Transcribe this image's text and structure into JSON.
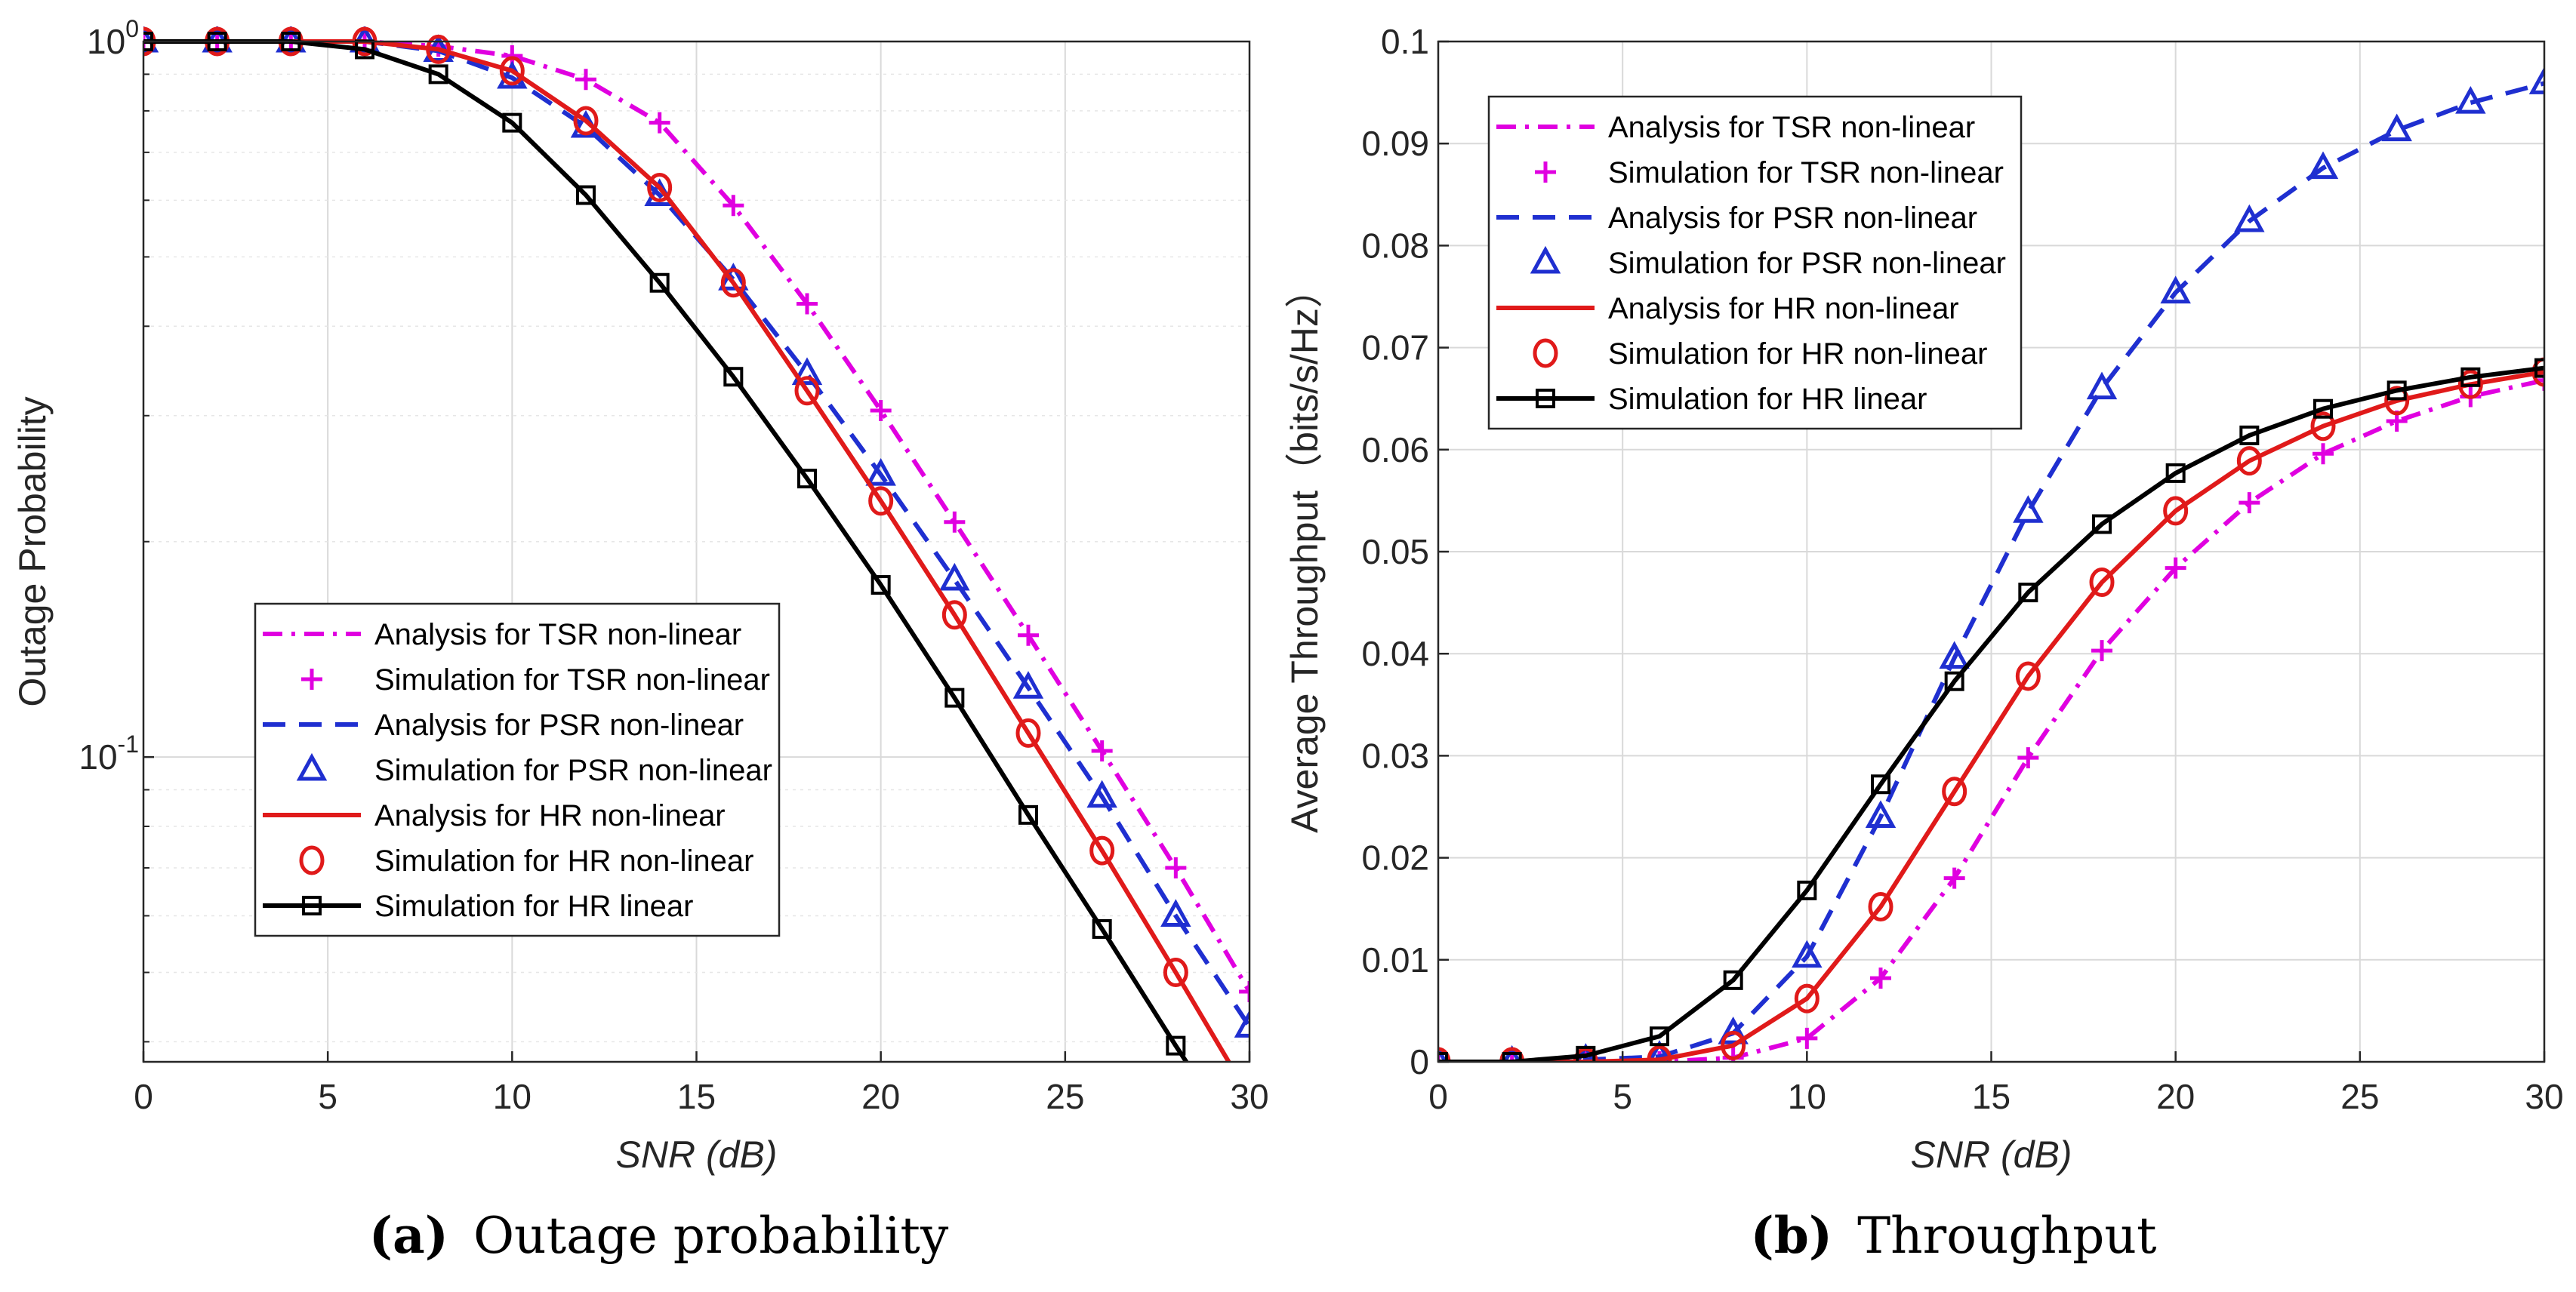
{
  "chart_data": [
    {
      "type": "line",
      "id": "a",
      "caption_tag": "(a)",
      "caption_text": "Outage probability",
      "xlabel": "SNR (dB)",
      "ylabel": "Outage Probability",
      "yscale": "log",
      "xlim": [
        0,
        30
      ],
      "ylim": [
        0.0375,
        1.0
      ],
      "xticks": [
        0,
        5,
        10,
        15,
        20,
        25,
        30
      ],
      "xtick_labels": [
        "0",
        "5",
        "10",
        "15",
        "20",
        "25",
        "30"
      ],
      "yticks": [
        {
          "value": 1.0,
          "base": "10",
          "exp": "0"
        },
        {
          "value": 0.1,
          "base": "10",
          "exp": "-1"
        }
      ],
      "grid": true,
      "legend_position": "lower-left",
      "x": [
        0,
        2,
        4,
        6,
        8,
        10,
        12,
        14,
        16,
        18,
        20,
        22,
        24,
        26,
        28,
        30
      ],
      "series": [
        {
          "name": "Analysis for TSR non-linear",
          "color": "#e000e0",
          "style": "dashdot",
          "marker": "none",
          "values": [
            1.0,
            1.0,
            1.0,
            1.0,
            0.985,
            0.955,
            0.885,
            0.77,
            0.59,
            0.43,
            0.305,
            0.213,
            0.148,
            0.102,
            0.07,
            0.047
          ]
        },
        {
          "name": "Simulation for TSR non-linear",
          "color": "#e000e0",
          "style": "none",
          "marker": "plus",
          "values": [
            1.0,
            1.0,
            1.0,
            1.0,
            0.985,
            0.955,
            0.885,
            0.77,
            0.59,
            0.43,
            0.305,
            0.213,
            0.148,
            0.102,
            0.07,
            0.047
          ]
        },
        {
          "name": "Analysis for PSR non-linear",
          "color": "#1f2fd0",
          "style": "dashed",
          "marker": "none",
          "values": [
            1.0,
            1.0,
            1.0,
            1.0,
            0.97,
            0.89,
            0.76,
            0.61,
            0.465,
            0.343,
            0.248,
            0.177,
            0.125,
            0.088,
            0.06,
            0.042
          ]
        },
        {
          "name": "Simulation for PSR non-linear",
          "color": "#1f2fd0",
          "style": "none",
          "marker": "triangle",
          "values": [
            1.0,
            1.0,
            1.0,
            1.0,
            0.97,
            0.89,
            0.76,
            0.61,
            0.465,
            0.343,
            0.248,
            0.177,
            0.125,
            0.088,
            0.06,
            0.042
          ]
        },
        {
          "name": "Analysis for HR non-linear",
          "color": "#e01a1a",
          "style": "solid",
          "marker": "none",
          "values": [
            1.0,
            1.0,
            1.0,
            1.0,
            0.975,
            0.91,
            0.775,
            0.625,
            0.46,
            0.325,
            0.228,
            0.158,
            0.108,
            0.074,
            0.05,
            0.0335
          ]
        },
        {
          "name": "Simulation for HR non-linear",
          "color": "#e01a1a",
          "style": "none",
          "marker": "circle",
          "values": [
            1.0,
            1.0,
            1.0,
            1.0,
            0.975,
            0.91,
            0.775,
            0.625,
            0.46,
            0.325,
            0.228,
            0.158,
            0.108,
            0.074,
            0.05,
            0.0335
          ]
        },
        {
          "name": "Simulation for HR linear",
          "color": "#000000",
          "style": "solid",
          "marker": "square",
          "values": [
            1.0,
            1.0,
            1.0,
            0.975,
            0.9,
            0.77,
            0.61,
            0.46,
            0.34,
            0.245,
            0.174,
            0.121,
            0.083,
            0.0575,
            0.0395,
            0.0275
          ]
        }
      ]
    },
    {
      "type": "line",
      "id": "b",
      "caption_tag": "(b)",
      "caption_text": "Throughput",
      "xlabel": "SNR (dB)",
      "ylabel": "Average Throughput（bits/s/Hz）",
      "yscale": "linear",
      "xlim": [
        0,
        30
      ],
      "ylim": [
        0,
        0.1
      ],
      "xticks": [
        0,
        5,
        10,
        15,
        20,
        25,
        30
      ],
      "xtick_labels": [
        "0",
        "5",
        "10",
        "15",
        "20",
        "25",
        "30"
      ],
      "yticks": [
        0,
        0.01,
        0.02,
        0.03,
        0.04,
        0.05,
        0.06,
        0.07,
        0.08,
        0.09,
        0.1
      ],
      "ytick_labels": [
        "0",
        "0.01",
        "0.02",
        "0.03",
        "0.04",
        "0.05",
        "0.06",
        "0.07",
        "0.08",
        "0.09",
        "0.1"
      ],
      "grid": true,
      "legend_position": "upper-left",
      "x": [
        0,
        2,
        4,
        6,
        8,
        10,
        12,
        14,
        16,
        18,
        20,
        22,
        24,
        26,
        28,
        30
      ],
      "series": [
        {
          "name": "Analysis for TSR non-linear",
          "color": "#e000e0",
          "style": "dashdot",
          "marker": "none",
          "values": [
            0.0,
            0.0,
            0.0,
            0.0,
            0.0004,
            0.0023,
            0.0082,
            0.018,
            0.0298,
            0.0403,
            0.0484,
            0.0548,
            0.0596,
            0.0628,
            0.0652,
            0.0668
          ]
        },
        {
          "name": "Simulation for TSR non-linear",
          "color": "#e000e0",
          "style": "none",
          "marker": "plus",
          "values": [
            0.0,
            0.0,
            0.0,
            0.0,
            0.0004,
            0.0023,
            0.0082,
            0.018,
            0.0298,
            0.0403,
            0.0484,
            0.0548,
            0.0596,
            0.0628,
            0.0652,
            0.0668
          ]
        },
        {
          "name": "Analysis for PSR non-linear",
          "color": "#1f2fd0",
          "style": "dashed",
          "marker": "none",
          "values": [
            0.0,
            0.0,
            0.0002,
            0.0005,
            0.0028,
            0.0103,
            0.024,
            0.0396,
            0.0539,
            0.066,
            0.0754,
            0.0824,
            0.0876,
            0.0913,
            0.094,
            0.0959
          ]
        },
        {
          "name": "Simulation for PSR non-linear",
          "color": "#1f2fd0",
          "style": "none",
          "marker": "triangle",
          "values": [
            0.0,
            0.0,
            0.0002,
            0.0005,
            0.0028,
            0.0103,
            0.024,
            0.0396,
            0.0539,
            0.066,
            0.0754,
            0.0824,
            0.0876,
            0.0913,
            0.094,
            0.0959
          ]
        },
        {
          "name": "Analysis for HR non-linear",
          "color": "#e01a1a",
          "style": "solid",
          "marker": "none",
          "values": [
            0.0,
            0.0,
            0.0,
            0.0002,
            0.0016,
            0.0062,
            0.0152,
            0.0265,
            0.0378,
            0.047,
            0.054,
            0.0589,
            0.0623,
            0.0648,
            0.0664,
            0.0676
          ]
        },
        {
          "name": "Simulation for HR non-linear",
          "color": "#e01a1a",
          "style": "none",
          "marker": "circle",
          "values": [
            0.0,
            0.0,
            0.0,
            0.0002,
            0.0016,
            0.0062,
            0.0152,
            0.0265,
            0.0378,
            0.047,
            0.054,
            0.0589,
            0.0623,
            0.0648,
            0.0664,
            0.0676
          ]
        },
        {
          "name": "Simulation for HR linear",
          "color": "#000000",
          "style": "solid",
          "marker": "square",
          "values": [
            0.0,
            0.0,
            0.0006,
            0.0025,
            0.008,
            0.0168,
            0.0272,
            0.0373,
            0.046,
            0.0527,
            0.0577,
            0.0614,
            0.064,
            0.0658,
            0.0671,
            0.068
          ]
        }
      ]
    }
  ]
}
